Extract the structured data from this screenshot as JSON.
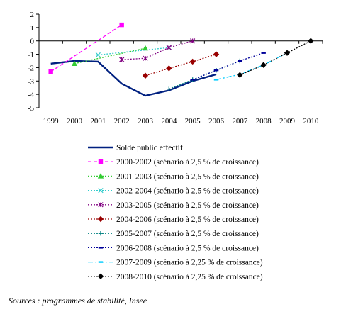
{
  "chart_data": {
    "type": "line",
    "title": "",
    "xlabel": "",
    "ylabel": "",
    "ylim": [
      -5,
      2
    ],
    "yticks": [
      2,
      1,
      0,
      -1,
      -2,
      -3,
      -4,
      -5
    ],
    "xticks": [
      "1999",
      "2000",
      "2001",
      "2002",
      "2003",
      "2004",
      "2005",
      "2006",
      "2007",
      "2008",
      "2009",
      "2010"
    ],
    "xlim": [
      1999,
      2010
    ],
    "grid": false,
    "legend_position": "bottom",
    "series": [
      {
        "name": "Solde public effectif",
        "color": "#002080",
        "style": "solid",
        "marker": "none",
        "points": [
          [
            1999,
            -1.7
          ],
          [
            2000,
            -1.5
          ],
          [
            2001,
            -1.55
          ],
          [
            2002,
            -3.2
          ],
          [
            2003,
            -4.1
          ],
          [
            2004,
            -3.7
          ],
          [
            2005,
            -3.0
          ],
          [
            2006,
            -2.5
          ]
        ]
      },
      {
        "name": "2000-2002 (scénario à 2,5 % de croissance)",
        "color": "#ff00ff",
        "style": "dashed",
        "marker": "square",
        "points": [
          [
            1999,
            -2.3
          ],
          [
            2002,
            1.2
          ]
        ]
      },
      {
        "name": "2001-2003 (scénario à 2,5 % de croissance)",
        "color": "#33cc33",
        "style": "dotted",
        "marker": "triangle",
        "points": [
          [
            2000,
            -1.7
          ],
          [
            2003,
            -0.55
          ]
        ]
      },
      {
        "name": "2002-2004 (scénario à 2,5 % de croissance)",
        "color": "#33cccc",
        "style": "dotted",
        "marker": "x",
        "points": [
          [
            2001,
            -1.05
          ],
          [
            2004,
            -0.5
          ]
        ]
      },
      {
        "name": "2003-2005 (scénario à 2,5 % de croissance)",
        "color": "#800080",
        "style": "dotted",
        "marker": "star",
        "points": [
          [
            2002,
            -1.4
          ],
          [
            2003,
            -1.3
          ],
          [
            2004,
            -0.5
          ],
          [
            2005,
            0.0
          ]
        ]
      },
      {
        "name": "2004-2006 (scénario à 2,5 % de croissance)",
        "color": "#990000",
        "style": "dotted",
        "marker": "diamond",
        "points": [
          [
            2003,
            -2.6
          ],
          [
            2004,
            -2.05
          ],
          [
            2005,
            -1.55
          ],
          [
            2006,
            -1.0
          ]
        ]
      },
      {
        "name": "2005-2007 (scénario à 2,5 % de croissance)",
        "color": "#008080",
        "style": "dotted",
        "marker": "plus",
        "points": [
          [
            2004,
            -3.6
          ],
          [
            2005,
            -2.9
          ],
          [
            2006,
            -2.2
          ],
          [
            2007,
            -1.5
          ]
        ]
      },
      {
        "name": "2006-2008 (scénario à 2,5 % de croissance)",
        "color": "#000099",
        "style": "dotted",
        "marker": "dash",
        "points": [
          [
            2005,
            -2.9
          ],
          [
            2006,
            -2.2
          ],
          [
            2007,
            -1.5
          ],
          [
            2008,
            -0.9
          ]
        ]
      },
      {
        "name": "2007-2009 (scénario à 2,25 % de croissance)",
        "color": "#00ccff",
        "style": "dashdot",
        "marker": "dash",
        "points": [
          [
            2006,
            -2.9
          ],
          [
            2007,
            -2.5
          ],
          [
            2008,
            -1.8
          ],
          [
            2009,
            -0.9
          ]
        ]
      },
      {
        "name": "2008-2010 (scénario à 2,25 % de croissance)",
        "color": "#000000",
        "style": "dotted",
        "marker": "diamond",
        "points": [
          [
            2007,
            -2.55
          ],
          [
            2008,
            -1.8
          ],
          [
            2009,
            -0.9
          ],
          [
            2010,
            0.0
          ]
        ]
      }
    ]
  },
  "source_note": "Sources : programmes de stabilité, Insee"
}
